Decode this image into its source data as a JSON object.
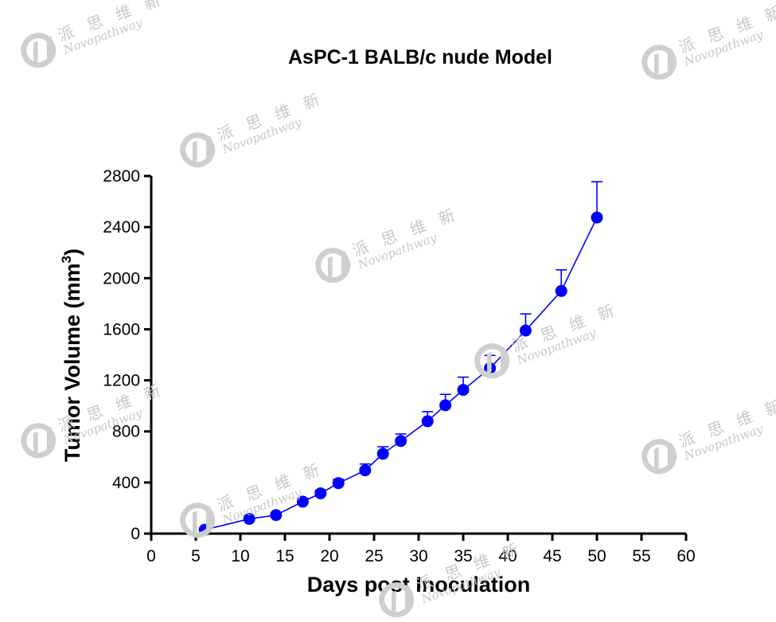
{
  "chart_data": {
    "type": "line",
    "title": "AsPC-1 BALB/c nude  Model",
    "xlabel": "Days post Inoculation",
    "ylabel": "Tumor Volume (mm",
    "ylabel_sup": "3",
    "ylabel_tail": ")",
    "xlim": [
      0,
      60
    ],
    "ylim": [
      0,
      2800
    ],
    "x_ticks": [
      "0",
      "5",
      "10",
      "15",
      "20",
      "25",
      "30",
      "35",
      "40",
      "45",
      "50",
      "55",
      "60"
    ],
    "y_ticks": [
      "0",
      "400",
      "800",
      "1200",
      "1600",
      "2000",
      "2400",
      "2800"
    ],
    "grid": false,
    "legend": "none",
    "series": [
      {
        "color": "#0000ff",
        "x": [
          6,
          11,
          14,
          17,
          19,
          21,
          24,
          26,
          28,
          31,
          33,
          35,
          38,
          42,
          46,
          50
        ],
        "y": [
          30,
          115,
          145,
          250,
          315,
          395,
          495,
          625,
          725,
          880,
          1005,
          1125,
          1295,
          1590,
          1900,
          2475
        ],
        "error": [
          10,
          15,
          20,
          25,
          25,
          30,
          50,
          55,
          55,
          75,
          85,
          100,
          100,
          130,
          165,
          280
        ]
      }
    ]
  },
  "watermark": {
    "cn": "派 思 维 新",
    "en": "Novopathway",
    "color": "#c8c8c8"
  }
}
